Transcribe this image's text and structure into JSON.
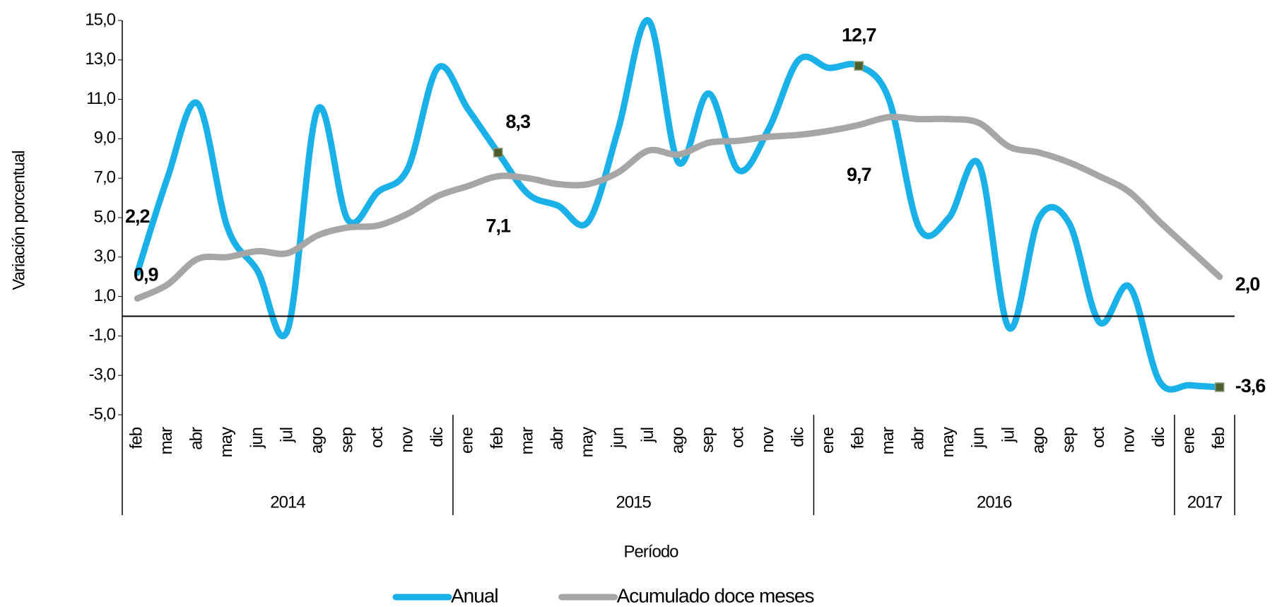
{
  "chart_data": {
    "type": "line",
    "y_label": "Variación porcentual",
    "x_label": "Período",
    "categories": [
      "feb",
      "mar",
      "abr",
      "may",
      "jun",
      "jul",
      "ago",
      "sep",
      "oct",
      "nov",
      "dic",
      "ene",
      "feb",
      "mar",
      "abr",
      "may",
      "jun",
      "jul",
      "ago",
      "sep",
      "oct",
      "nov",
      "dic",
      "ene",
      "feb",
      "mar",
      "abr",
      "may",
      "jun",
      "jul",
      "ago",
      "sep",
      "oct",
      "nov",
      "dic",
      "ene",
      "feb"
    ],
    "groups": [
      {
        "label": "2014",
        "count": 11
      },
      {
        "label": "2015",
        "count": 12
      },
      {
        "label": "2016",
        "count": 12
      },
      {
        "label": "2017",
        "count": 2
      }
    ],
    "series": [
      {
        "name": "Anual",
        "color": "#1ab0e8",
        "values": [
          2.2,
          7.0,
          10.8,
          4.5,
          2.3,
          -0.7,
          10.5,
          4.9,
          6.3,
          7.5,
          12.6,
          10.5,
          8.3,
          6.2,
          5.6,
          4.8,
          9.5,
          15.0,
          7.8,
          11.3,
          7.4,
          9.5,
          13.0,
          12.6,
          12.7,
          11.0,
          4.5,
          5.0,
          7.7,
          -0.6,
          5.0,
          4.7,
          -0.3,
          1.5,
          -3.3,
          -3.5,
          -3.6
        ],
        "value_labels": [
          "2,2",
          null,
          null,
          null,
          null,
          null,
          null,
          null,
          null,
          null,
          null,
          null,
          "8,3",
          null,
          null,
          null,
          null,
          null,
          null,
          null,
          null,
          null,
          null,
          null,
          "12,7",
          null,
          null,
          null,
          null,
          null,
          null,
          null,
          null,
          null,
          null,
          null,
          "-3,6"
        ],
        "markers": [
          12,
          24,
          36
        ]
      },
      {
        "name": "Acumulado doce meses",
        "color": "#a6a6a6",
        "values": [
          0.9,
          1.6,
          2.9,
          3.0,
          3.3,
          3.2,
          4.1,
          4.5,
          4.6,
          5.2,
          6.1,
          6.6,
          7.1,
          7.0,
          6.7,
          6.7,
          7.3,
          8.4,
          8.2,
          8.8,
          8.9,
          9.1,
          9.2,
          9.4,
          9.7,
          10.1,
          10.0,
          10.0,
          9.8,
          8.6,
          8.3,
          7.8,
          7.1,
          6.3,
          4.8,
          3.4,
          2.0
        ],
        "value_labels": [
          "0,9",
          null,
          null,
          null,
          null,
          null,
          null,
          null,
          null,
          null,
          null,
          null,
          "7,1",
          null,
          null,
          null,
          null,
          null,
          null,
          null,
          null,
          null,
          null,
          null,
          "9,7",
          null,
          null,
          null,
          null,
          null,
          null,
          null,
          null,
          null,
          null,
          null,
          "2,0"
        ]
      }
    ],
    "ylim": [
      -5,
      15
    ],
    "yticks": [
      {
        "value": -5,
        "label": "-5,0"
      },
      {
        "value": -3,
        "label": "-3,0"
      },
      {
        "value": -1,
        "label": "-1,0"
      },
      {
        "value": 1,
        "label": "1,0"
      },
      {
        "value": 3,
        "label": "3,0"
      },
      {
        "value": 5,
        "label": "5,0"
      },
      {
        "value": 7,
        "label": "7,0"
      },
      {
        "value": 9,
        "label": "9,0"
      },
      {
        "value": 11,
        "label": "11,0"
      },
      {
        "value": 13,
        "label": "13,0"
      },
      {
        "value": 15,
        "label": "15,0"
      }
    ],
    "legend": "bottom"
  }
}
